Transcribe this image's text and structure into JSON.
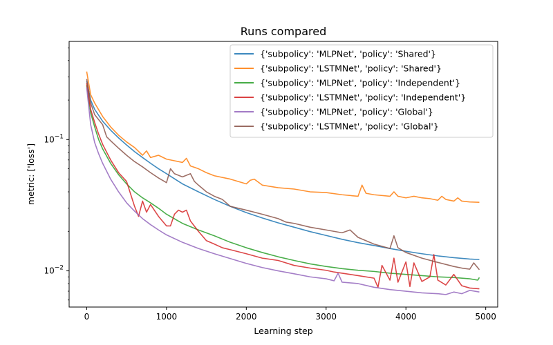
{
  "chart_data": {
    "type": "line",
    "title": "Runs compared",
    "xlabel": "Learning step",
    "ylabel": "metric: ['loss']",
    "xlim": [
      -220,
      5150
    ],
    "ylim": [
      0.0053,
      0.56
    ],
    "yscale": "log",
    "grid": false,
    "legend_position": "top-right",
    "x_ticks": [
      {
        "value": 0,
        "label": "0"
      },
      {
        "value": 1000,
        "label": "1000"
      },
      {
        "value": 2000,
        "label": "2000"
      },
      {
        "value": 3000,
        "label": "3000"
      },
      {
        "value": 4000,
        "label": "4000"
      },
      {
        "value": 5000,
        "label": "5000"
      }
    ],
    "y_ticks": [
      {
        "value": 0.01,
        "label": "10",
        "exp": "−2"
      },
      {
        "value": 0.1,
        "label": "10",
        "exp": "−1"
      }
    ],
    "series": [
      {
        "name": "{'subpolicy': 'MLPNet', 'policy': 'Shared'}",
        "color": "#1f77b4",
        "x": [
          0,
          50,
          100,
          200,
          300,
          400,
          500,
          600,
          700,
          800,
          900,
          1000,
          1200,
          1400,
          1600,
          1800,
          2000,
          2200,
          2400,
          2600,
          2800,
          3000,
          3200,
          3400,
          3600,
          3800,
          4000,
          4200,
          4400,
          4600,
          4800,
          4920
        ],
        "y": [
          0.28,
          0.2,
          0.17,
          0.138,
          0.118,
          0.103,
          0.091,
          0.081,
          0.073,
          0.066,
          0.06,
          0.055,
          0.046,
          0.04,
          0.035,
          0.031,
          0.0278,
          0.0253,
          0.0232,
          0.0215,
          0.0199,
          0.0186,
          0.0174,
          0.0164,
          0.0156,
          0.0148,
          0.0141,
          0.0135,
          0.013,
          0.0126,
          0.0123,
          0.0122
        ]
      },
      {
        "name": "{'subpolicy': 'LSTMNet', 'policy': 'Shared'}",
        "color": "#ff7f0e",
        "x": [
          0,
          50,
          100,
          200,
          300,
          400,
          500,
          600,
          700,
          750,
          800,
          900,
          1000,
          1100,
          1200,
          1250,
          1300,
          1400,
          1500,
          1600,
          1800,
          2000,
          2050,
          2100,
          2200,
          2400,
          2600,
          2800,
          3000,
          3200,
          3400,
          3450,
          3500,
          3600,
          3800,
          3850,
          3900,
          4000,
          4100,
          4200,
          4300,
          4400,
          4450,
          4500,
          4600,
          4650,
          4700,
          4800,
          4920
        ],
        "y": [
          0.33,
          0.22,
          0.19,
          0.15,
          0.125,
          0.108,
          0.096,
          0.087,
          0.076,
          0.082,
          0.073,
          0.076,
          0.071,
          0.069,
          0.067,
          0.072,
          0.063,
          0.06,
          0.056,
          0.053,
          0.05,
          0.046,
          0.049,
          0.05,
          0.045,
          0.043,
          0.042,
          0.04,
          0.0395,
          0.038,
          0.037,
          0.045,
          0.039,
          0.038,
          0.037,
          0.04,
          0.037,
          0.036,
          0.037,
          0.036,
          0.0355,
          0.0345,
          0.037,
          0.035,
          0.034,
          0.036,
          0.034,
          0.0335,
          0.0333
        ]
      },
      {
        "name": "{'subpolicy': 'MLPNet', 'policy': 'Independent'}",
        "color": "#2ca02c",
        "x": [
          0,
          50,
          100,
          150,
          200,
          300,
          400,
          500,
          600,
          700,
          800,
          900,
          1000,
          1200,
          1400,
          1600,
          1800,
          2000,
          2200,
          2400,
          2600,
          2800,
          3000,
          3200,
          3400,
          3600,
          3800,
          4000,
          4200,
          4400,
          4600,
          4800,
          4900,
          4920
        ],
        "y": [
          0.26,
          0.16,
          0.125,
          0.1,
          0.085,
          0.066,
          0.054,
          0.046,
          0.04,
          0.036,
          0.033,
          0.03,
          0.027,
          0.023,
          0.0205,
          0.0185,
          0.0165,
          0.015,
          0.0138,
          0.0128,
          0.012,
          0.0113,
          0.0108,
          0.0104,
          0.0101,
          0.0099,
          0.0096,
          0.0094,
          0.0092,
          0.009,
          0.0089,
          0.0087,
          0.0085,
          0.0089
        ]
      },
      {
        "name": "{'subpolicy': 'LSTMNet', 'policy': 'Independent'}",
        "color": "#d62728",
        "x": [
          0,
          50,
          100,
          150,
          200,
          300,
          400,
          500,
          600,
          650,
          700,
          750,
          800,
          900,
          1000,
          1050,
          1100,
          1150,
          1200,
          1250,
          1300,
          1400,
          1500,
          1600,
          1700,
          1800,
          2000,
          2200,
          2400,
          2600,
          2800,
          3000,
          3100,
          3200,
          3400,
          3600,
          3650,
          3700,
          3800,
          3850,
          3900,
          4000,
          4050,
          4100,
          4200,
          4300,
          4350,
          4400,
          4500,
          4600,
          4700,
          4800,
          4920
        ],
        "y": [
          0.27,
          0.17,
          0.135,
          0.11,
          0.092,
          0.07,
          0.056,
          0.048,
          0.031,
          0.026,
          0.034,
          0.028,
          0.032,
          0.026,
          0.022,
          0.022,
          0.027,
          0.029,
          0.028,
          0.029,
          0.024,
          0.02,
          0.017,
          0.016,
          0.015,
          0.0145,
          0.0135,
          0.0125,
          0.012,
          0.011,
          0.0105,
          0.0101,
          0.0098,
          0.0096,
          0.0092,
          0.0088,
          0.0075,
          0.011,
          0.0085,
          0.0125,
          0.0082,
          0.0117,
          0.0076,
          0.0115,
          0.0083,
          0.009,
          0.0133,
          0.0085,
          0.0078,
          0.0094,
          0.0077,
          0.0074,
          0.0073
        ]
      },
      {
        "name": "{'subpolicy': 'MLPNet', 'policy': 'Global'}",
        "color": "#9467bd",
        "x": [
          0,
          50,
          100,
          150,
          200,
          300,
          400,
          500,
          600,
          700,
          800,
          900,
          1000,
          1200,
          1400,
          1600,
          1800,
          2000,
          2200,
          2400,
          2600,
          2800,
          3000,
          3100,
          3150,
          3200,
          3400,
          3600,
          3800,
          4000,
          4200,
          4400,
          4500,
          4600,
          4700,
          4800,
          4920
        ],
        "y": [
          0.25,
          0.13,
          0.095,
          0.078,
          0.066,
          0.05,
          0.04,
          0.033,
          0.0285,
          0.025,
          0.0225,
          0.0205,
          0.0188,
          0.0165,
          0.0148,
          0.0135,
          0.0124,
          0.0114,
          0.0106,
          0.01,
          0.0095,
          0.009,
          0.0087,
          0.0084,
          0.0096,
          0.0082,
          0.008,
          0.0075,
          0.0072,
          0.007,
          0.0068,
          0.0067,
          0.0066,
          0.0069,
          0.0067,
          0.0071,
          0.0069
        ]
      },
      {
        "name": "{'subpolicy': 'LSTMNet', 'policy': 'Global'}",
        "color": "#8c564b",
        "x": [
          0,
          50,
          100,
          200,
          250,
          300,
          400,
          500,
          600,
          700,
          800,
          900,
          1000,
          1050,
          1100,
          1200,
          1300,
          1350,
          1400,
          1500,
          1600,
          1700,
          1800,
          2000,
          2200,
          2400,
          2500,
          2600,
          2800,
          3000,
          3200,
          3300,
          3400,
          3600,
          3800,
          3850,
          3900,
          4000,
          4200,
          4400,
          4600,
          4700,
          4800,
          4850,
          4920
        ],
        "y": [
          0.29,
          0.19,
          0.155,
          0.13,
          0.105,
          0.098,
          0.086,
          0.076,
          0.068,
          0.062,
          0.056,
          0.051,
          0.047,
          0.06,
          0.055,
          0.052,
          0.055,
          0.048,
          0.045,
          0.04,
          0.037,
          0.035,
          0.031,
          0.029,
          0.027,
          0.025,
          0.0235,
          0.023,
          0.0215,
          0.0205,
          0.0195,
          0.0205,
          0.018,
          0.016,
          0.0148,
          0.0185,
          0.015,
          0.0138,
          0.0125,
          0.0116,
          0.0108,
          0.0105,
          0.0103,
          0.0115,
          0.0102
        ]
      }
    ]
  }
}
